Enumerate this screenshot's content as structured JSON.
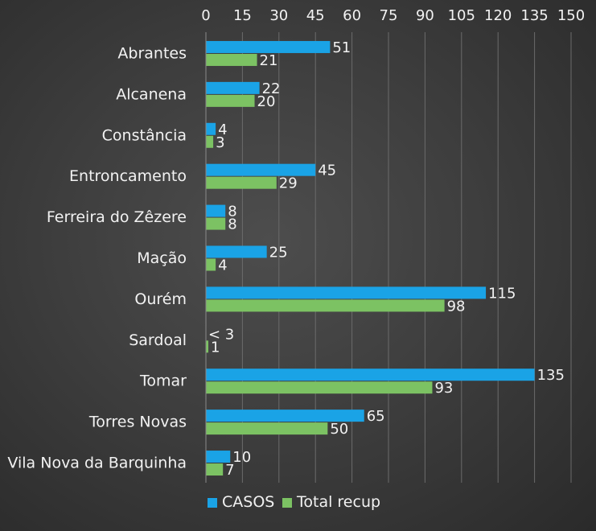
{
  "chart_data": {
    "type": "bar",
    "orientation": "horizontal",
    "categories": [
      "Abrantes",
      "Alcanena",
      "Constância",
      "Entroncamento",
      "Ferreira do Zêzere",
      "Mação",
      "Ourém",
      "Sardoal",
      "Tomar",
      "Torres Novas",
      "Vila Nova da Barquinha"
    ],
    "series": [
      {
        "name": "CASOS",
        "color": "#1aa3e6",
        "values": [
          51,
          22,
          4,
          45,
          8,
          25,
          115,
          null,
          135,
          65,
          10
        ],
        "labels": [
          "51",
          "22",
          "4",
          "45",
          "8",
          "25",
          "115",
          "< 3",
          "135",
          "65",
          "10"
        ]
      },
      {
        "name": "Total recup",
        "color": "#7cc263",
        "values": [
          21,
          20,
          3,
          29,
          8,
          4,
          98,
          1,
          93,
          50,
          7
        ],
        "labels": [
          "21",
          "20",
          "3",
          "29",
          "8",
          "4",
          "98",
          "1",
          "93",
          "50",
          "7"
        ]
      }
    ],
    "xlim": [
      0,
      150
    ],
    "xticks": [
      0,
      15,
      30,
      45,
      60,
      75,
      90,
      105,
      120,
      135,
      150
    ],
    "x_axis_position": "top",
    "grid": true,
    "legend_position": "bottom"
  }
}
